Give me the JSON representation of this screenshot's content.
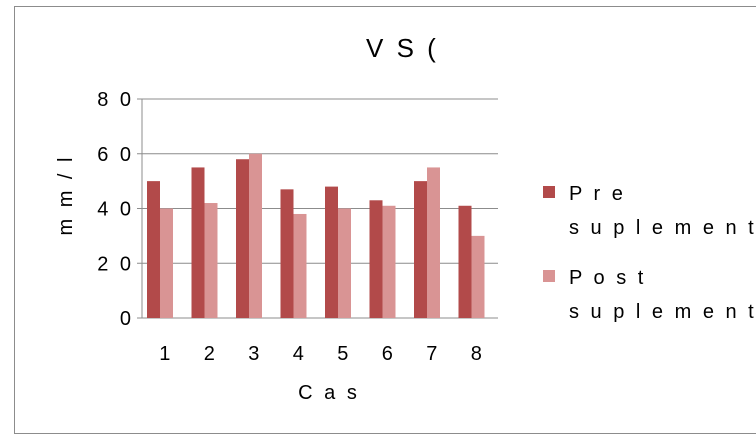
{
  "chart_data": {
    "type": "bar",
    "title": "V S (",
    "xlabel": "C a s",
    "ylabel": "m m / l",
    "ylim": [
      0,
      80
    ],
    "yticks": [
      "0",
      "2 0",
      "4 0",
      "6 0",
      "8 0"
    ],
    "categories": [
      "1",
      "2",
      "3",
      "4",
      "5",
      "6",
      "7",
      "8"
    ],
    "grid": true,
    "legend_position": "right",
    "series": [
      {
        "name": "P r e s u p l e m e n t",
        "color": "#b24a4a",
        "values": [
          50,
          55,
          58,
          47,
          48,
          43,
          50,
          41
        ]
      },
      {
        "name": "P o s t s u p l e m e n t",
        "color": "#d99494",
        "values": [
          40,
          42,
          60,
          38,
          40,
          41,
          55,
          30
        ]
      }
    ],
    "legend_lines": [
      [
        "P r e",
        "s u p l e m e n t"
      ],
      [
        "P o s t",
        "s u p l e m e n t"
      ]
    ]
  }
}
